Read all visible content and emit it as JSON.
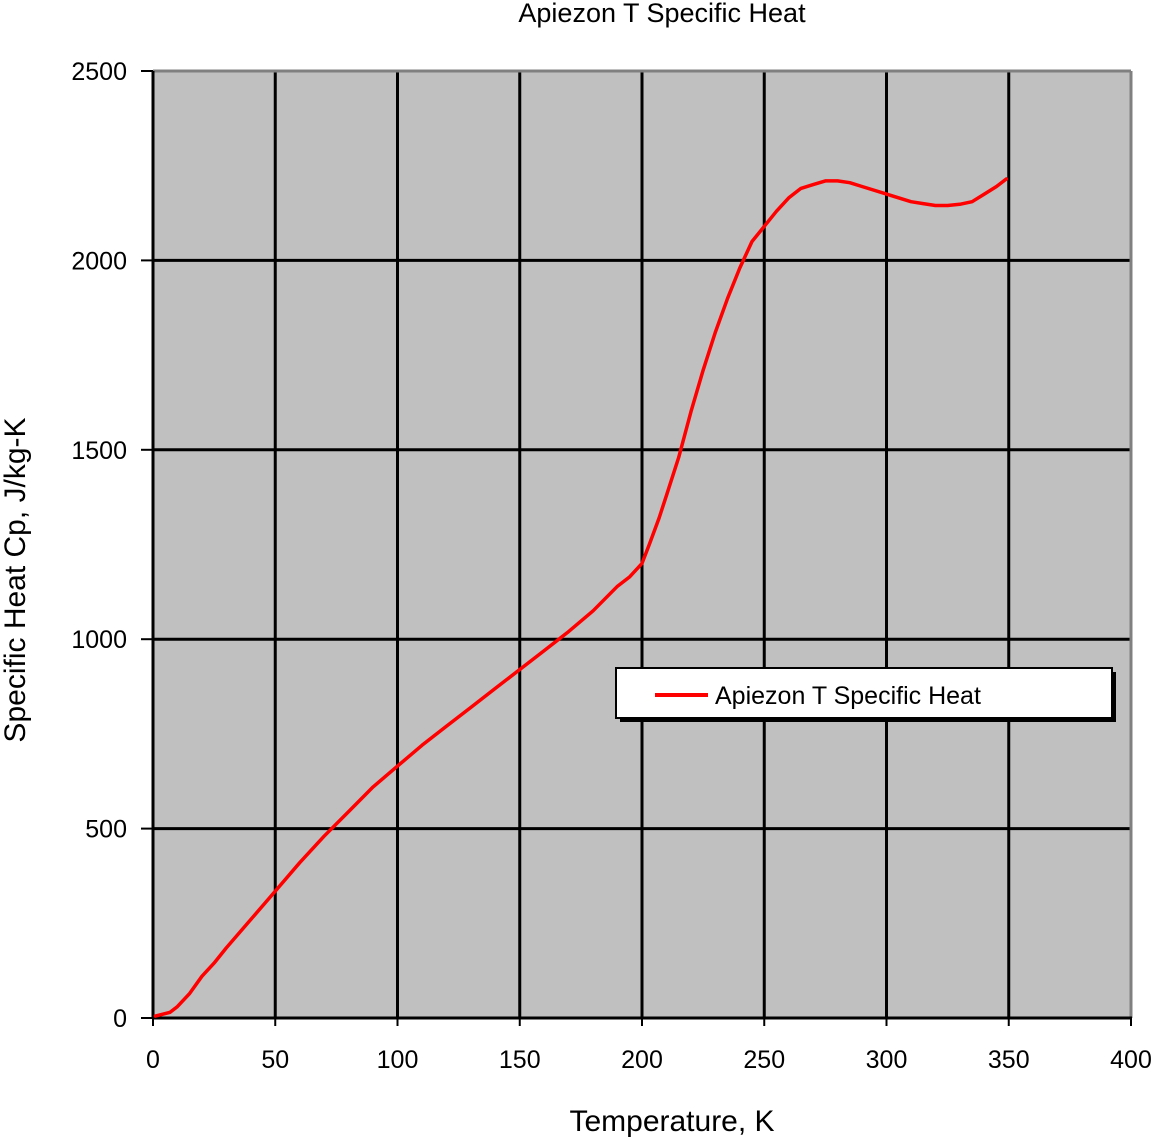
{
  "chart_data": {
    "type": "line",
    "title": "Apiezon T Specific Heat",
    "xlabel": "Temperature, K",
    "ylabel": "Specific Heat Cp, J/kg-K",
    "xlim": [
      0,
      400
    ],
    "ylim": [
      0,
      2500
    ],
    "xticks": [
      "0",
      "50",
      "100",
      "150",
      "200",
      "250",
      "300",
      "350",
      "400"
    ],
    "yticks": [
      "0",
      "500",
      "1000",
      "1500",
      "2000",
      "2500"
    ],
    "grid": true,
    "plot_background": "#c0c0c0",
    "legend_position": "right-middle",
    "series": [
      {
        "name": "Apiezon T  Specific Heat",
        "color": "#ff0000",
        "x": [
          1,
          4,
          7,
          10,
          15,
          20,
          25,
          30,
          40,
          50,
          60,
          70,
          80,
          90,
          100,
          110,
          120,
          130,
          140,
          150,
          160,
          170,
          180,
          190,
          195,
          200,
          203,
          207,
          210,
          215,
          220,
          225,
          230,
          235,
          240,
          245,
          250,
          255,
          260,
          265,
          270,
          275,
          280,
          285,
          290,
          300,
          310,
          315,
          320,
          325,
          330,
          335,
          340,
          345,
          349
        ],
        "y": [
          5,
          10,
          15,
          30,
          65,
          110,
          145,
          185,
          260,
          335,
          410,
          480,
          545,
          610,
          665,
          720,
          770,
          820,
          870,
          920,
          970,
          1020,
          1075,
          1140,
          1165,
          1200,
          1250,
          1320,
          1380,
          1480,
          1600,
          1710,
          1810,
          1900,
          1980,
          2050,
          2090,
          2130,
          2165,
          2190,
          2200,
          2210,
          2210,
          2205,
          2195,
          2175,
          2155,
          2150,
          2145,
          2145,
          2148,
          2155,
          2175,
          2195,
          2215
        ]
      }
    ]
  }
}
